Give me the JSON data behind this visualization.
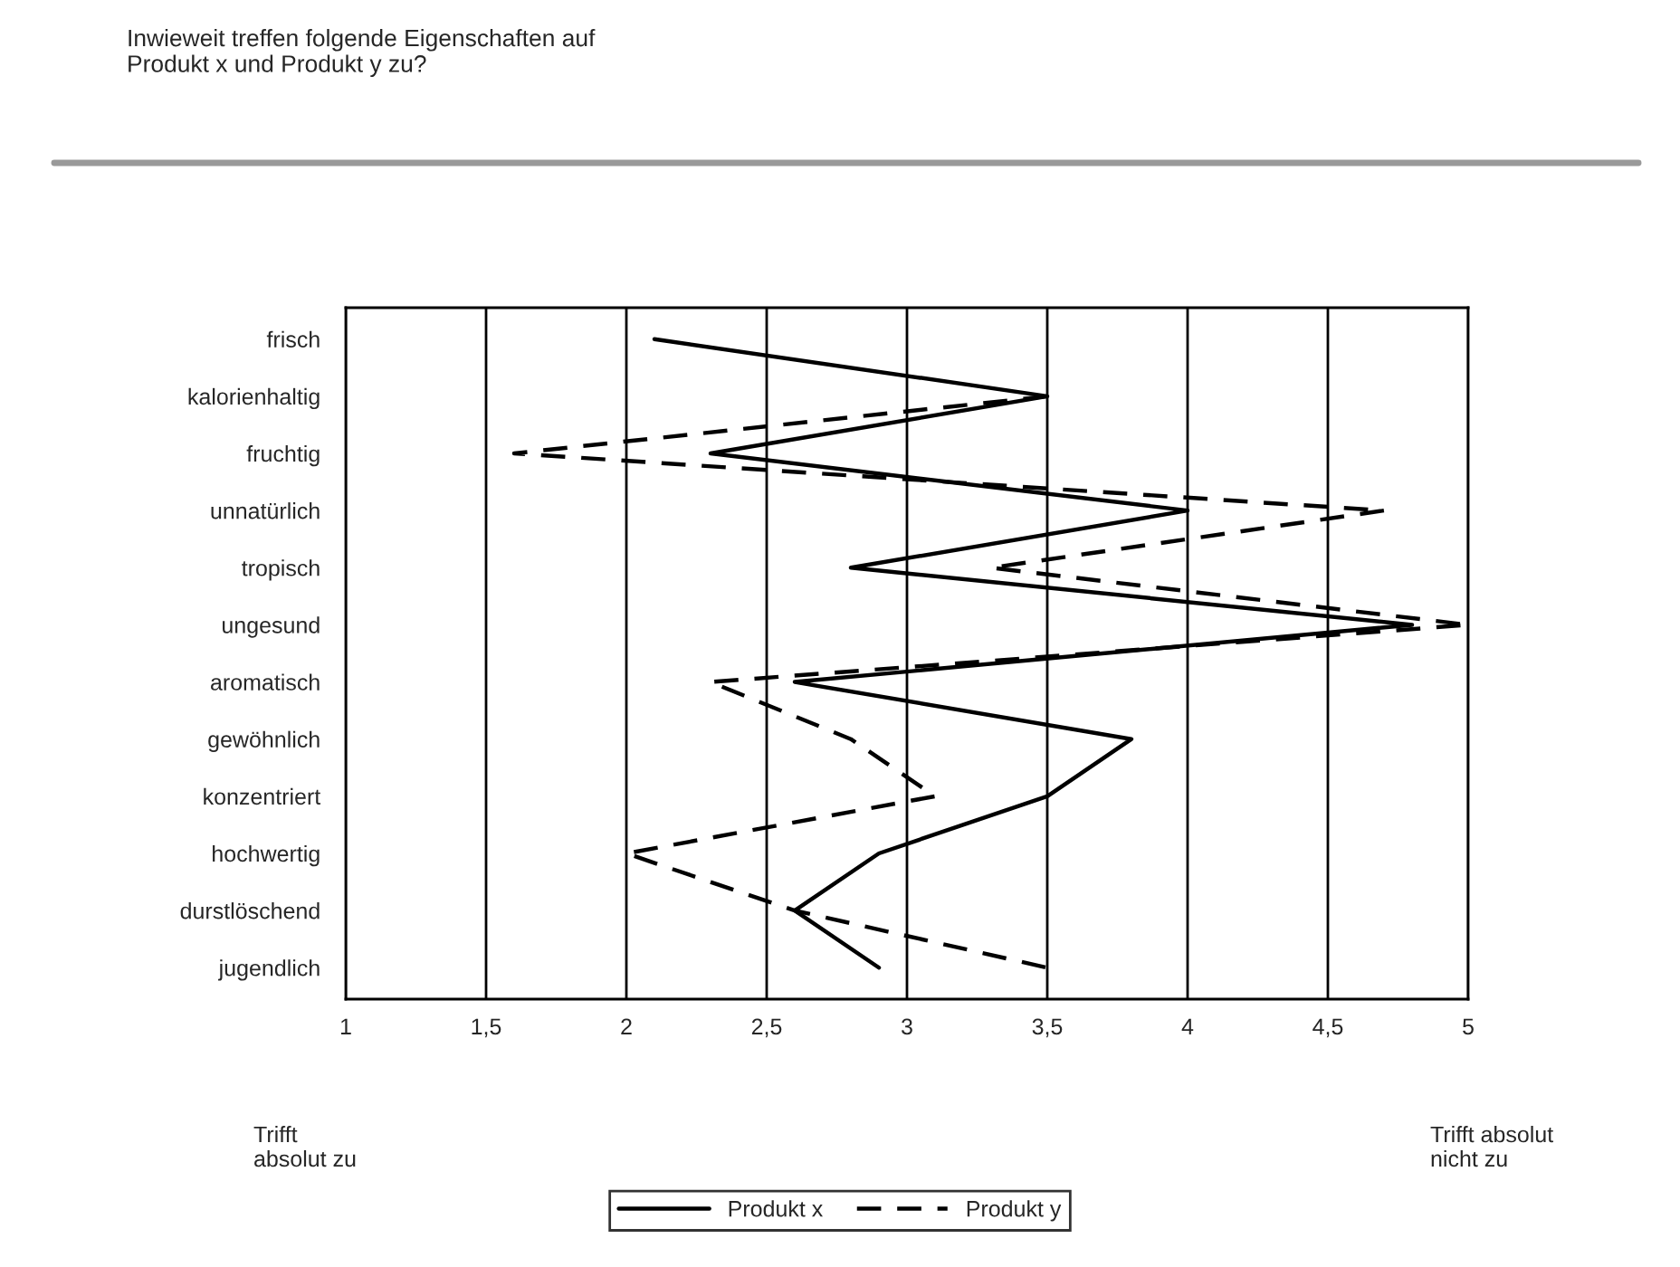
{
  "chart_data": {
    "type": "line",
    "orientation": "horizontal",
    "title": "Inwieweit treffen folgende Eigenschaften auf\nProdukt x und Produkt y zu?",
    "categories": [
      "frisch",
      "kalorienhaltig",
      "fruchtig",
      "unnatürlich",
      "tropisch",
      "ungesund",
      "aromatisch",
      "gewöhnlich",
      "konzentriert",
      "hochwertig",
      "durstlöschend",
      "jugendlich"
    ],
    "series": [
      {
        "name": "Produkt x",
        "color": "#000000",
        "line_style": "solid",
        "values": [
          2.1,
          3.5,
          2.3,
          4.0,
          2.8,
          4.8,
          2.6,
          3.8,
          3.5,
          2.9,
          2.6,
          2.9
        ]
      },
      {
        "name": "Produkt y",
        "color": "#000000",
        "line_style": "dashed",
        "values": [
          null,
          3.5,
          1.6,
          4.7,
          3.3,
          5.0,
          2.3,
          2.8,
          3.1,
          2.0,
          2.6,
          3.5
        ]
      }
    ],
    "xlim": [
      1,
      5
    ],
    "xticks": [
      1,
      {
        "value": 1.5,
        "label": "1,5"
      },
      2,
      {
        "value": 2.5,
        "label": "2,5"
      },
      3,
      {
        "value": 3.5,
        "label": "3,5"
      },
      4,
      {
        "value": 4.5,
        "label": "4,5"
      },
      5
    ],
    "grid": "x",
    "legend": "bottom",
    "marker": "none",
    "annotations": [
      "Trifft\nabsolut zu",
      "Trifft absolut\nnicht zu"
    ]
  }
}
